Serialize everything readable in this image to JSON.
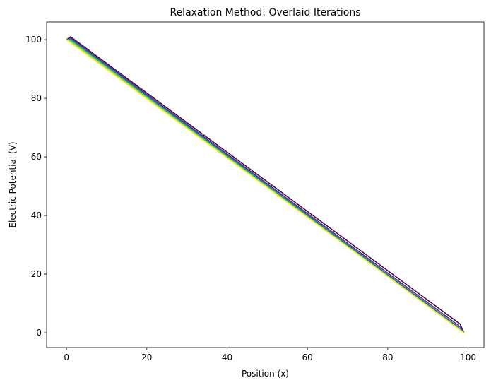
{
  "chart_data": {
    "type": "line",
    "title": "Relaxation Method: Overlaid Iterations",
    "xlabel": "Position (x)",
    "ylabel": "Electric Potential (V)",
    "xlim": [
      -4.95,
      103.95
    ],
    "ylim": [
      -5.05,
      106.05
    ],
    "xticks": [
      0,
      20,
      40,
      60,
      80,
      100
    ],
    "yticks": [
      0,
      20,
      40,
      60,
      80,
      100
    ],
    "grid": false,
    "legend": "none",
    "colormap": "viridis",
    "series": [
      {
        "color": "#440154",
        "x": [
          0,
          1,
          98,
          99
        ],
        "y": [
          100,
          101,
          3,
          0
        ]
      },
      {
        "color": "#46327e",
        "x": [
          0,
          1,
          98,
          99
        ],
        "y": [
          100,
          100.6,
          2.1,
          0
        ]
      },
      {
        "color": "#365c8d",
        "x": [
          0,
          1,
          98,
          99
        ],
        "y": [
          100,
          100.3,
          1.5,
          0
        ]
      },
      {
        "color": "#277f8e",
        "x": [
          0,
          1,
          98,
          99
        ],
        "y": [
          100,
          100.1,
          1.2,
          0
        ]
      },
      {
        "color": "#1fa187",
        "x": [
          0,
          1,
          98,
          99
        ],
        "y": [
          100,
          99.9,
          1.1,
          0
        ]
      },
      {
        "color": "#4ac16d",
        "x": [
          0,
          1,
          98,
          99
        ],
        "y": [
          100,
          99.7,
          1.0,
          0
        ]
      },
      {
        "color": "#a0da39",
        "x": [
          0,
          1,
          98,
          99
        ],
        "y": [
          100,
          99.4,
          0.95,
          0
        ]
      },
      {
        "color": "#fde725",
        "x": [
          0,
          99
        ],
        "y": [
          100,
          0
        ]
      }
    ]
  }
}
